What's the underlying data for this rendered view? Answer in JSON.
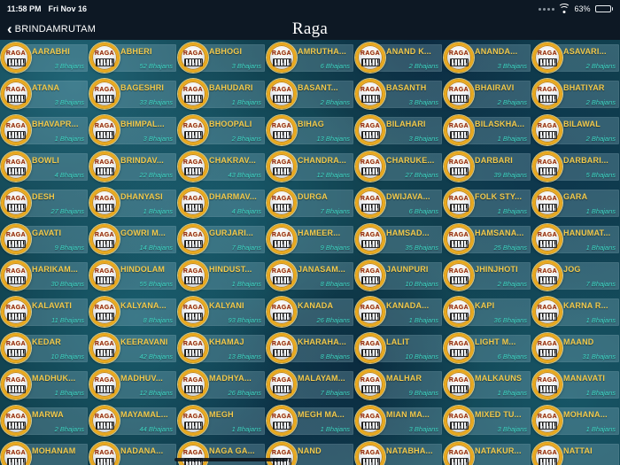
{
  "status_bar": {
    "time": "11:58 PM",
    "date": "Fri Nov 16",
    "battery_percent": "63%",
    "battery_level": 63
  },
  "nav_bar": {
    "back_label": "BRINDAMRUTAM",
    "title": "Raga"
  },
  "badge": {
    "label": "RAGA"
  },
  "colors": {
    "bar_background": "#0d1824",
    "name_text": "#f2ca4c",
    "count_text": "#3fd8c6",
    "badge_ring": "#e9a91f",
    "background_teal": "#11414f"
  },
  "grid": {
    "items": [
      {
        "name": "AARABHI",
        "count": "3 Bhajans"
      },
      {
        "name": "ABHERI",
        "count": "52 Bhajans"
      },
      {
        "name": "ABHOGI",
        "count": "3 Bhajans"
      },
      {
        "name": "AMRUTHA...",
        "count": "6 Bhajans"
      },
      {
        "name": "ANAND K...",
        "count": "2 Bhajans"
      },
      {
        "name": "ANANDA...",
        "count": "3 Bhajans"
      },
      {
        "name": "ASAVARI...",
        "count": "2 Bhajans"
      },
      {
        "name": "ATANA",
        "count": "3 Bhajans"
      },
      {
        "name": "BAGESHRI",
        "count": "33 Bhajans"
      },
      {
        "name": "BAHUDARI",
        "count": "1 Bhajans"
      },
      {
        "name": "BASANT...",
        "count": "2 Bhajans"
      },
      {
        "name": "BASANTH",
        "count": "3 Bhajans"
      },
      {
        "name": "BHAIRAVI",
        "count": "2 Bhajans"
      },
      {
        "name": "BHATIYAR",
        "count": "2 Bhajans"
      },
      {
        "name": "BHAVAPR...",
        "count": "1 Bhajans"
      },
      {
        "name": "BHIMPAL...",
        "count": "3 Bhajans"
      },
      {
        "name": "BHOOPALI",
        "count": "2 Bhajans"
      },
      {
        "name": "BIHAG",
        "count": "13 Bhajans"
      },
      {
        "name": "BILAHARI",
        "count": "3 Bhajans"
      },
      {
        "name": "BILASKHA...",
        "count": "1 Bhajans"
      },
      {
        "name": "BILAWAL",
        "count": "2 Bhajans"
      },
      {
        "name": "BOWLI",
        "count": "4 Bhajans"
      },
      {
        "name": "BRINDAV...",
        "count": "22 Bhajans"
      },
      {
        "name": "CHAKRAV...",
        "count": "43 Bhajans"
      },
      {
        "name": "CHANDRA...",
        "count": "12 Bhajans"
      },
      {
        "name": "CHARUKE...",
        "count": "27 Bhajans"
      },
      {
        "name": "DARBARI",
        "count": "39 Bhajans"
      },
      {
        "name": "DARBARI...",
        "count": "5 Bhajans"
      },
      {
        "name": "DESH",
        "count": "27 Bhajans"
      },
      {
        "name": "DHANYASI",
        "count": "1 Bhajans"
      },
      {
        "name": "DHARMAV...",
        "count": "4 Bhajans"
      },
      {
        "name": "DURGA",
        "count": "7 Bhajans"
      },
      {
        "name": "DWIJAVA...",
        "count": "6 Bhajans"
      },
      {
        "name": "FOLK STY...",
        "count": "1 Bhajans"
      },
      {
        "name": "GARA",
        "count": "1 Bhajans"
      },
      {
        "name": "GAVATI",
        "count": "9 Bhajans"
      },
      {
        "name": "GOWRI M...",
        "count": "14 Bhajans"
      },
      {
        "name": "GURJARI...",
        "count": "7 Bhajans"
      },
      {
        "name": "HAMEER...",
        "count": "9 Bhajans"
      },
      {
        "name": "HAMSAD...",
        "count": "35 Bhajans"
      },
      {
        "name": "HAMSANA...",
        "count": "25 Bhajans"
      },
      {
        "name": "HANUMAT...",
        "count": "1 Bhajans"
      },
      {
        "name": "HARIKAM...",
        "count": "30 Bhajans"
      },
      {
        "name": "HINDOLAM",
        "count": "55 Bhajans"
      },
      {
        "name": "HINDUST...",
        "count": "1 Bhajans"
      },
      {
        "name": "JANASAM...",
        "count": "8 Bhajans"
      },
      {
        "name": "JAUNPURI",
        "count": "10 Bhajans"
      },
      {
        "name": "JHINJHOTI",
        "count": "2 Bhajans"
      },
      {
        "name": "JOG",
        "count": "7 Bhajans"
      },
      {
        "name": "KALAVATI",
        "count": "11 Bhajans"
      },
      {
        "name": "KALYANA...",
        "count": "8 Bhajans"
      },
      {
        "name": "KALYANI",
        "count": "93 Bhajans"
      },
      {
        "name": "KANADA",
        "count": "26 Bhajans"
      },
      {
        "name": "KANADA...",
        "count": "1 Bhajans"
      },
      {
        "name": "KAPI",
        "count": "36 Bhajans"
      },
      {
        "name": "KARNA R...",
        "count": "1 Bhajans"
      },
      {
        "name": "KEDAR",
        "count": "10 Bhajans"
      },
      {
        "name": "KEERAVANI",
        "count": "42 Bhajans"
      },
      {
        "name": "KHAMAJ",
        "count": "13 Bhajans"
      },
      {
        "name": "KHARAHA...",
        "count": "8 Bhajans"
      },
      {
        "name": "LALIT",
        "count": "10 Bhajans"
      },
      {
        "name": "LIGHT M...",
        "count": "6 Bhajans"
      },
      {
        "name": "MAAND",
        "count": "31 Bhajans"
      },
      {
        "name": "MADHUK...",
        "count": "1 Bhajans"
      },
      {
        "name": "MADHUV...",
        "count": "12 Bhajans"
      },
      {
        "name": "MADHYA...",
        "count": "26 Bhajans"
      },
      {
        "name": "MALAYAM...",
        "count": "7 Bhajans"
      },
      {
        "name": "MALHAR",
        "count": "9 Bhajans"
      },
      {
        "name": "MALKAUNS",
        "count": "1 Bhajans"
      },
      {
        "name": "MANAVATI",
        "count": "1 Bhajans"
      },
      {
        "name": "MARWA",
        "count": "2 Bhajans"
      },
      {
        "name": "MAYAMAL...",
        "count": "44 Bhajans"
      },
      {
        "name": "MEGH",
        "count": "1 Bhajans"
      },
      {
        "name": "MEGH MA...",
        "count": "1 Bhajans"
      },
      {
        "name": "MIAN MA...",
        "count": "3 Bhajans"
      },
      {
        "name": "MIXED TU...",
        "count": "3 Bhajans"
      },
      {
        "name": "MOHANA...",
        "count": "1 Bhajans"
      },
      {
        "name": "MOHANAM",
        "count": ""
      },
      {
        "name": "NADANA...",
        "count": ""
      },
      {
        "name": "NAGA GA...",
        "count": ""
      },
      {
        "name": "NAND",
        "count": ""
      },
      {
        "name": "NATABHA...",
        "count": ""
      },
      {
        "name": "NATAKUR...",
        "count": ""
      },
      {
        "name": "NATTAI",
        "count": ""
      }
    ]
  }
}
